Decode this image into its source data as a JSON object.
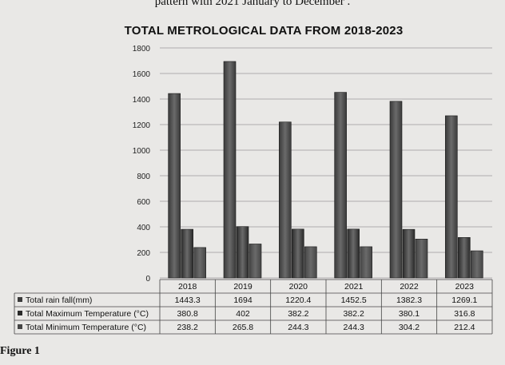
{
  "document": {
    "top_caption": "pattern with 2021 January to December .",
    "figure_label": "Figure 1"
  },
  "chart_data": {
    "type": "bar",
    "title": "TOTAL METROLOGICAL DATA FROM 2018-2023",
    "xlabel": "",
    "ylabel": "",
    "categories": [
      "2018",
      "2019",
      "2020",
      "2021",
      "2022",
      "2023"
    ],
    "ylim": [
      0,
      1800
    ],
    "yticks": [
      0,
      200,
      400,
      600,
      800,
      1000,
      1200,
      1400,
      1600,
      1800
    ],
    "ytick_labels": [
      "0",
      "200",
      "400",
      "600",
      "800",
      "1000",
      "1200",
      "1400",
      "1600",
      "1800"
    ],
    "grid": true,
    "legend": "table-below",
    "series": [
      {
        "name": "Total rain fall(mm)",
        "values": [
          1443.3,
          1694,
          1220.4,
          1452.5,
          1382.3,
          1269.1
        ],
        "value_labels": [
          "1443.3",
          "1694",
          "1220.4",
          "1452.5",
          "1382.3",
          "1269.1"
        ],
        "color": "#3a3a3a"
      },
      {
        "name": "Total Maximum Temperature (°C)",
        "values": [
          380.8,
          402,
          382.2,
          382.2,
          380.1,
          316.8
        ],
        "value_labels": [
          "380.8",
          "402",
          "382.2",
          "382.2",
          "380.1",
          "316.8"
        ],
        "color": "#2a2a2a"
      },
      {
        "name": "Total Minimum Temperature (°C)",
        "values": [
          238.2,
          265.8,
          244.3,
          244.3,
          304.2,
          212.4
        ],
        "value_labels": [
          "238.2",
          "265.8",
          "244.3",
          "244.3",
          "304.2",
          "212.4"
        ],
        "color": "#454545"
      }
    ]
  }
}
